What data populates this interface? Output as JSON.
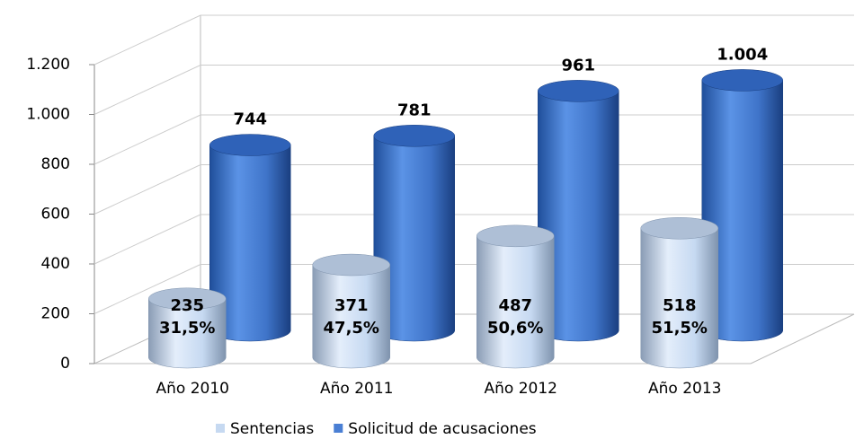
{
  "chart_data": {
    "type": "bar3d",
    "categories": [
      "Año 2010",
      "Año 2011",
      "Año 2012",
      "Año 2013"
    ],
    "series": [
      {
        "name": "Sentencias",
        "color": "#c6d9f1",
        "values": [
          235,
          371,
          487,
          518
        ],
        "share_labels": [
          "31,5%",
          "47,5%",
          "50,6%",
          "51,5%"
        ]
      },
      {
        "name": "Solicitud de acusaciones",
        "color": "#4a7fd4",
        "values": [
          744,
          781,
          961,
          1004
        ],
        "value_labels": [
          "744",
          "781",
          "961",
          "1.004"
        ]
      }
    ],
    "ylim": [
      0,
      1200
    ],
    "yticks": [
      0,
      200,
      400,
      600,
      800,
      {
        "value": 1000,
        "label": "1.000"
      },
      {
        "value": 1200,
        "label": "1.200"
      }
    ],
    "grid": true,
    "legend": "bottom"
  }
}
